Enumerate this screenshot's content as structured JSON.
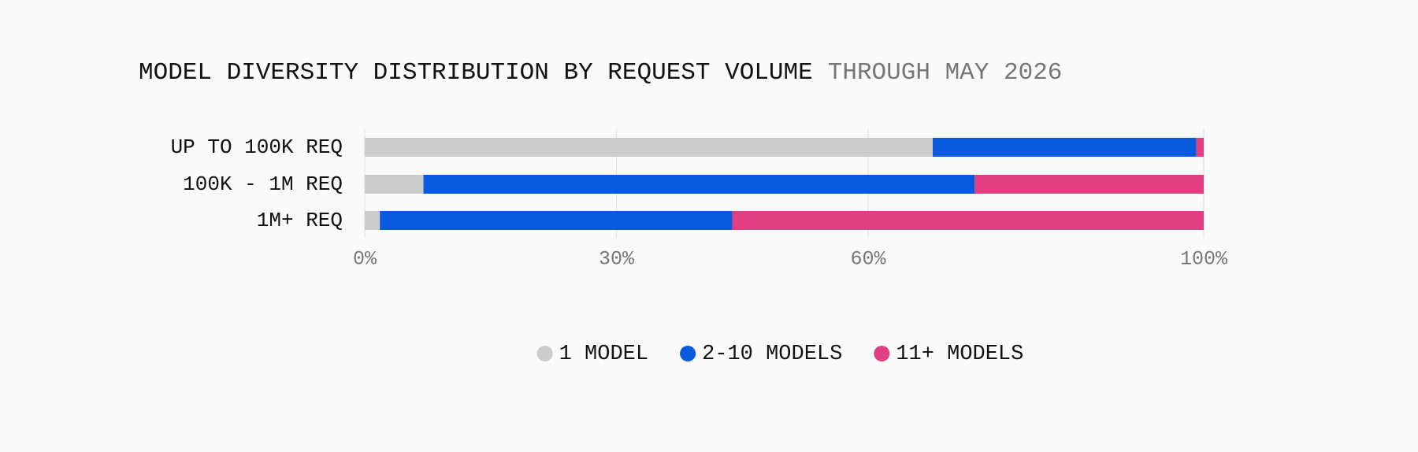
{
  "chart_data": {
    "type": "stacked-bar-horizontal",
    "title": "MODEL DIVERSITY DISTRIBUTION BY REQUEST VOLUME",
    "subtitle": "THROUGH MAY 2026",
    "categories": [
      "UP TO 100K REQ",
      "100K - 1M REQ",
      "1M+ REQ"
    ],
    "series": [
      {
        "name": "1 MODEL",
        "color": "#cccccc",
        "values": [
          67.7,
          7.0,
          1.8
        ]
      },
      {
        "name": "2-10 MODELS",
        "color": "#0a5ae0",
        "values": [
          31.4,
          65.7,
          42.0
        ]
      },
      {
        "name": "11+ MODELS",
        "color": "#e04082",
        "values": [
          0.9,
          27.3,
          56.2
        ]
      }
    ],
    "xlim": [
      0,
      100
    ],
    "xticks": [
      {
        "value": 0,
        "label": "0%"
      },
      {
        "value": 30,
        "label": "30%"
      },
      {
        "value": 60,
        "label": "60%"
      },
      {
        "value": 100,
        "label": "100%"
      }
    ],
    "grid": true,
    "legend": "bottom"
  }
}
